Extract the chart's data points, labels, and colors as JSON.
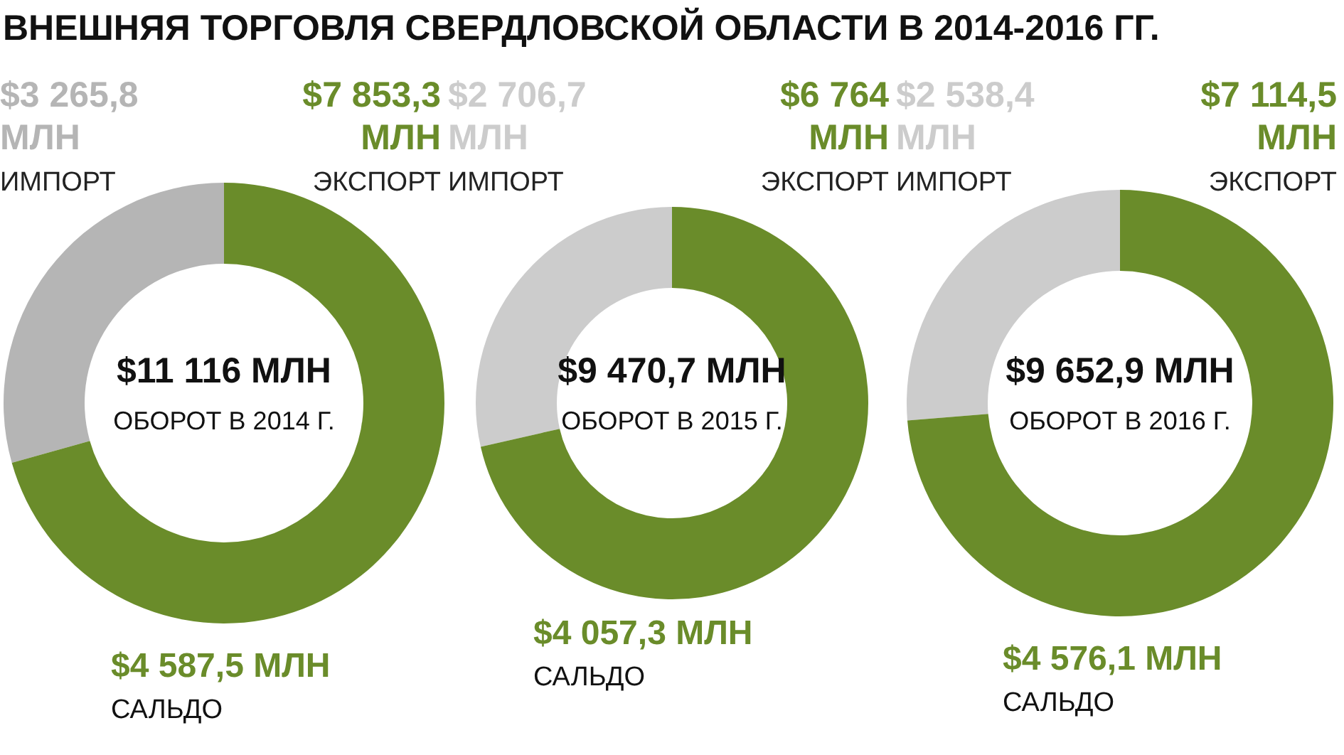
{
  "chart_data": [
    {
      "type": "donut",
      "title": "ВНЕШНЯЯ ТОРГОВЛЯ СВЕРДЛОВСКОЙ ОБЛАСТИ В 2014-2016 ГГ.",
      "categories": [
        "ИМПОРТ",
        "ЭКСПОРТ"
      ],
      "values": [
        3265.8,
        7853.3
      ],
      "colors": [
        "#b5b5b5",
        "#6a8c2a"
      ],
      "value_labels": [
        "$3 265,8 МЛН",
        "$7 853,3 МЛН"
      ],
      "annotations": [
        "$11 116 МЛН",
        "ОБОРОТ В 2014 Г.",
        "$4 587,5 МЛН",
        "САЛЬДО"
      ]
    },
    {
      "type": "donut",
      "categories": [
        "ИМПОРТ",
        "ЭКСПОРТ"
      ],
      "values": [
        2706.7,
        6764
      ],
      "colors": [
        "#cccccc",
        "#6a8c2a"
      ],
      "value_labels": [
        "$2 706,7 МЛН",
        "$6 764 МЛН"
      ],
      "annotations": [
        "$9 470,7 МЛН",
        "ОБОРОТ В 2015 Г.",
        "$4 057,3 МЛН",
        "САЛЬДО"
      ]
    },
    {
      "type": "donut",
      "categories": [
        "ИМПОРТ",
        "ЭКСПОРТ"
      ],
      "values": [
        2538.4,
        7114.5
      ],
      "colors": [
        "#cccccc",
        "#6a8c2a"
      ],
      "value_labels": [
        "$2 538,4 МЛН",
        "$7 114,5 МЛН"
      ],
      "annotations": [
        "$9 652,9 МЛН",
        "ОБОРОТ В 2016 Г.",
        "$4 576,1 МЛН",
        "САЛЬДО"
      ]
    }
  ]
}
